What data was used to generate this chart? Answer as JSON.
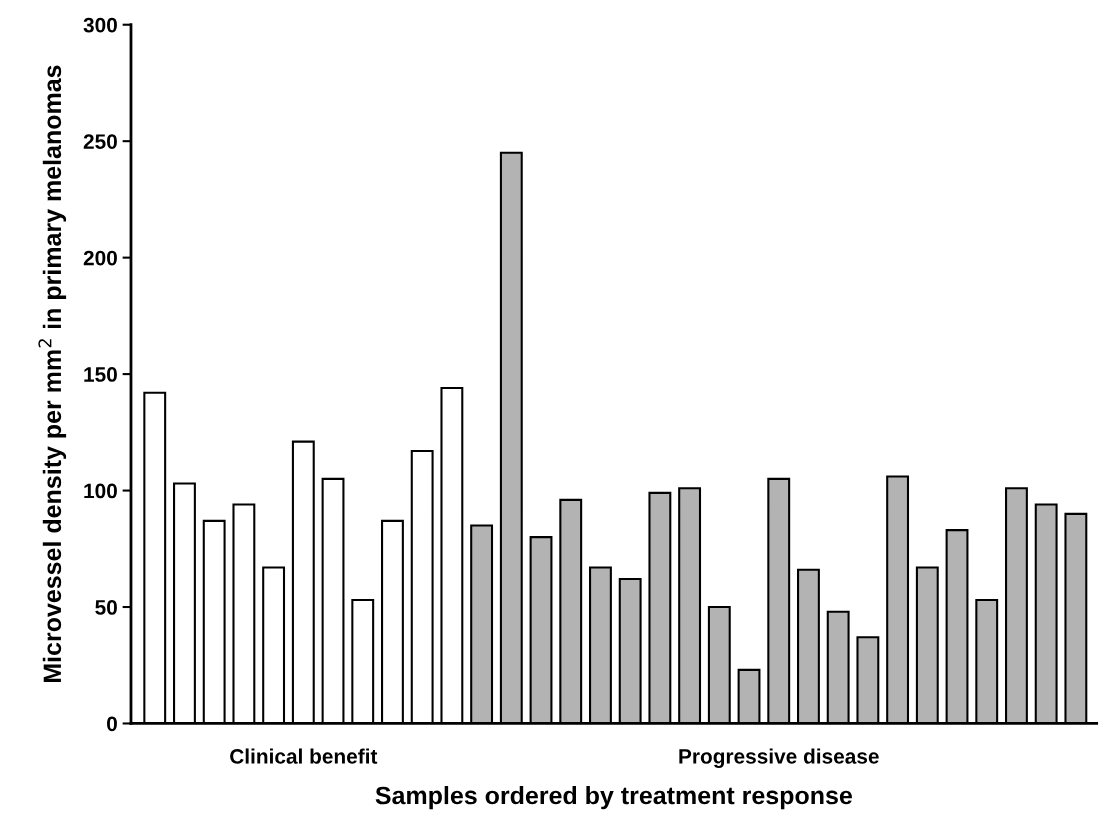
{
  "chart_data": {
    "type": "bar",
    "xlabel": "Samples ordered by treatment response",
    "ylabel": "Microvessel density per mm$^{2}$ in primary melanomas",
    "categories": [
      null,
      null,
      null,
      null,
      null,
      null,
      null,
      null,
      null,
      null,
      null,
      null,
      null,
      null,
      null,
      null,
      null,
      null,
      null,
      null,
      null,
      null,
      null,
      null,
      null,
      null,
      null,
      null,
      null,
      null,
      null,
      null
    ],
    "values": [
      142,
      103,
      87,
      94,
      67,
      121,
      105,
      53,
      87,
      117,
      144,
      85,
      245,
      80,
      96,
      67,
      62,
      99,
      101,
      50,
      23,
      105,
      66,
      48,
      37,
      106,
      67,
      83,
      53,
      101,
      94,
      90
    ],
    "colors": [
      "#ffffff",
      "#ffffff",
      "#ffffff",
      "#ffffff",
      "#ffffff",
      "#ffffff",
      "#ffffff",
      "#ffffff",
      "#ffffff",
      "#ffffff",
      "#ffffff",
      "#b3b3b3",
      "#b3b3b3",
      "#b3b3b3",
      "#b3b3b3",
      "#b3b3b3",
      "#b3b3b3",
      "#b3b3b3",
      "#b3b3b3",
      "#b3b3b3",
      "#b3b3b3",
      "#b3b3b3",
      "#b3b3b3",
      "#b3b3b3",
      "#b3b3b3",
      "#b3b3b3",
      "#b3b3b3",
      "#b3b3b3",
      "#b3b3b3",
      "#b3b3b3",
      "#b3b3b3",
      "#b3b3b3"
    ],
    "annotations": [
      "Clinical benefit",
      "Progressive disease"
    ],
    "ylim": [
      0,
      300
    ],
    "yticks": [
      0,
      50,
      100,
      150,
      200,
      250,
      300
    ],
    "tick_labels": "y",
    "grid": false
  }
}
